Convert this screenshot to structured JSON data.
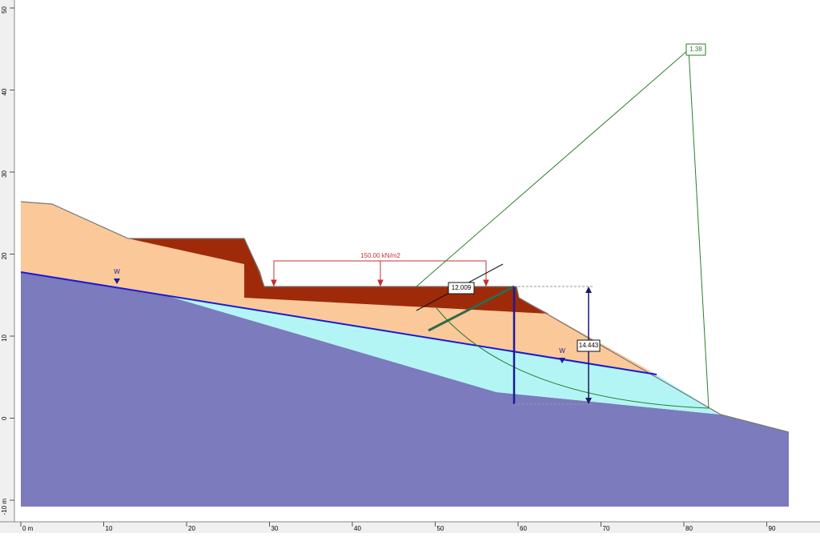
{
  "x_ruler": {
    "labels": [
      "0 m",
      "10",
      "20",
      "30",
      "40",
      "50",
      "60",
      "70",
      "80",
      "90"
    ]
  },
  "y_ruler": {
    "labels": [
      "-10 m",
      "0",
      "10",
      "20",
      "30",
      "40",
      "50"
    ]
  },
  "load_label": "150.00 kN/m2",
  "safety_factor": "1.38",
  "dimension_labels": [
    "12.009",
    "14.443"
  ],
  "water_markers": [
    "W",
    "W"
  ]
}
